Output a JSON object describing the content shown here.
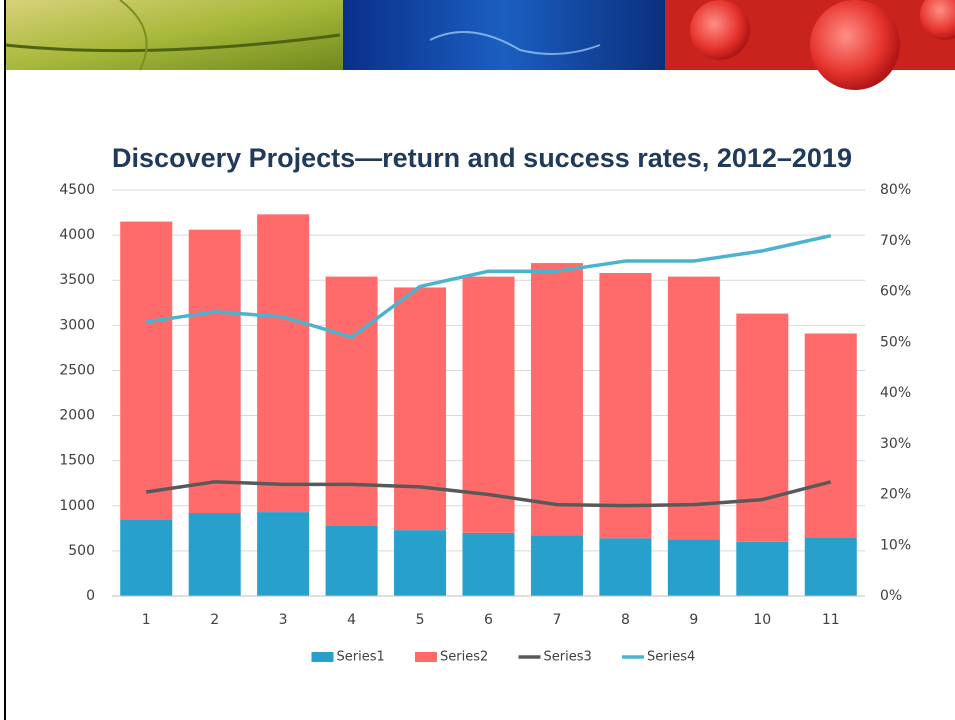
{
  "chart_data": {
    "type": "bar",
    "title": "Discovery Projects—return and success rates, 2012–2019",
    "categories": [
      "1",
      "2",
      "3",
      "4",
      "5",
      "6",
      "7",
      "8",
      "9",
      "10",
      "11"
    ],
    "series": [
      {
        "name": "Series1",
        "color": "#27a0cc",
        "type": "bar",
        "values": [
          850,
          920,
          930,
          780,
          730,
          700,
          670,
          640,
          630,
          600,
          650
        ]
      },
      {
        "name": "Series2",
        "color": "#ff6b6b",
        "type": "bar",
        "values": [
          3300,
          3140,
          3300,
          2760,
          2690,
          2840,
          3020,
          2940,
          2910,
          2530,
          2260
        ]
      },
      {
        "name": "Series3",
        "color": "#595959",
        "type": "line",
        "axis": "y2",
        "values": [
          20.5,
          22.5,
          22,
          22,
          21.5,
          20,
          18,
          17.8,
          18,
          19,
          22.5
        ]
      },
      {
        "name": "Series4",
        "color": "#4bb3cd",
        "type": "line",
        "axis": "y2",
        "values": [
          54,
          56,
          55,
          51,
          61,
          64,
          64,
          66,
          66,
          68,
          71
        ]
      }
    ],
    "stacked": true,
    "ylim": [
      0,
      4500
    ],
    "yticks": [
      0,
      500,
      1000,
      1500,
      2000,
      2500,
      3000,
      3500,
      4000,
      4500
    ],
    "y2lim": [
      0,
      80
    ],
    "y2ticks": [
      {
        "value": 0,
        "label": "0%"
      },
      {
        "value": 10,
        "label": "10%"
      },
      {
        "value": 20,
        "label": "20%"
      },
      {
        "value": 30,
        "label": "30%"
      },
      {
        "value": 40,
        "label": "40%"
      },
      {
        "value": 50,
        "label": "50%"
      },
      {
        "value": 60,
        "label": "60%"
      },
      {
        "value": 70,
        "label": "70%"
      },
      {
        "value": 80,
        "label": "80%"
      }
    ],
    "grid": true,
    "legend": "bottom"
  }
}
